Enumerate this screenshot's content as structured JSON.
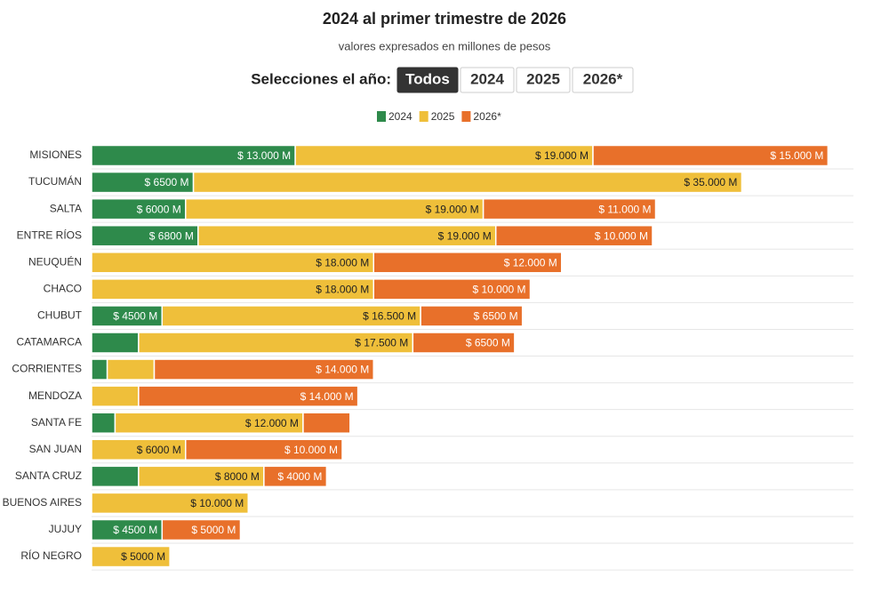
{
  "controls": {
    "label": "Selecciones el año:",
    "options": [
      "Todos",
      "2024",
      "2025",
      "2026*"
    ],
    "selected": 0
  },
  "chart_data": {
    "type": "stacked-bar-horizontal",
    "title": "2024 al primer trimestre de 2026",
    "subtitle": "valores expresados en millones de pesos",
    "categories": [
      "MISIONES",
      "TUCUMÁN",
      "SALTA",
      "ENTRE RÍOS",
      "NEUQUÉN",
      "CHACO",
      "CHUBUT",
      "CATAMARCA",
      "CORRIENTES",
      "MENDOZA",
      "SANTA FE",
      "SAN JUAN",
      "SANTA CRUZ",
      "BUENOS AIRES",
      "JUJUY",
      "RÍO NEGRO"
    ],
    "xlim": [
      0,
      48000
    ],
    "grid": true,
    "legend": "top",
    "series": [
      {
        "name": "2024",
        "color": "#2e8a4b",
        "values": [
          13000,
          6500,
          6000,
          6800,
          null,
          null,
          4500,
          3000,
          1000,
          null,
          1500,
          null,
          3000,
          null,
          4500,
          null
        ],
        "value_labels": [
          "$ 13.000 M",
          "$ 6500 M",
          "$ 6000 M",
          "$ 6800 M",
          null,
          null,
          "$ 4500 M",
          null,
          null,
          null,
          null,
          null,
          null,
          null,
          "$ 4500 M",
          null
        ]
      },
      {
        "name": "2025",
        "color": "#efbf3a",
        "values": [
          19000,
          35000,
          19000,
          19000,
          18000,
          18000,
          16500,
          17500,
          3000,
          3000,
          12000,
          6000,
          8000,
          10000,
          null,
          5000
        ],
        "value_labels": [
          "$ 19.000 M",
          "$ 35.000 M",
          "$ 19.000 M",
          "$ 19.000 M",
          "$ 18.000 M",
          "$ 18.000 M",
          "$ 16.500 M",
          "$ 17.500 M",
          null,
          null,
          "$ 12.000 M",
          "$ 6000 M",
          "$ 8000 M",
          "$ 10.000 M",
          null,
          "$ 5000 M"
        ]
      },
      {
        "name": "2026*",
        "color": "#e8702a",
        "values": [
          15000,
          null,
          11000,
          10000,
          12000,
          10000,
          6500,
          6500,
          14000,
          14000,
          3000,
          10000,
          4000,
          null,
          5000,
          null
        ],
        "value_labels": [
          "$ 15.000 M",
          null,
          "$ 11.000 M",
          "$ 10.000 M",
          "$ 12.000 M",
          "$ 10.000 M",
          "$ 6500 M",
          "$ 6500 M",
          "$ 14.000 M",
          "$ 14.000 M",
          null,
          "$ 10.000 M",
          "$ 4000 M",
          null,
          "$ 5000 M",
          null
        ]
      }
    ]
  }
}
